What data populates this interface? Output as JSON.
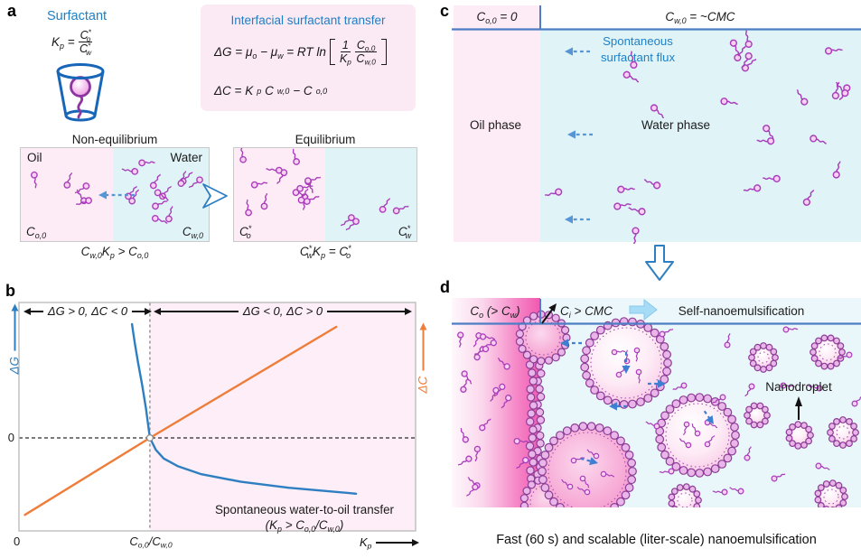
{
  "panels": {
    "a": {
      "label": "a",
      "surfactant_label": "Surfactant",
      "kp_eq": {
        "lhs": "K_{p} =",
        "num": "C^{*}_{o}",
        "den": "C^{*}_{w}"
      },
      "transfer_box": {
        "title": "Interfacial surfactant transfer",
        "eq1_lhs": "ΔG = μ_{o} − μ_{w} = RT ln",
        "f1": {
          "num": "1",
          "den": "K_{p}"
        },
        "f2": {
          "num": "C_{o,0}",
          "den": "C_{w,0}"
        },
        "eq2": "ΔC = K_{p}C_{w,0} − C_{o,0}"
      },
      "non_equilibrium": {
        "title": "Non-equilibrium",
        "oil_label": "Oil",
        "water_label": "Water",
        "oil_conc": "C_{o,0}",
        "water_conc": "C_{w,0}",
        "condition": "C_{w,0}K_{p} > C_{o,0}"
      },
      "equilibrium": {
        "title": "Equilibrium",
        "oil_conc": "C^{*}_{o}",
        "water_conc": "C^{*}_{w}",
        "condition": "C^{*}_{w}K_{p} = C^{*}_{o}"
      }
    },
    "b": {
      "label": "b",
      "region_left": "ΔG > 0, ΔC < 0",
      "region_right": "ΔG < 0, ΔC > 0",
      "y_left_label": "ΔG",
      "y_right_label": "ΔC",
      "zero_y": "0",
      "zero_x": "0",
      "x_tick": "C_{o,0}/C_{w,0}",
      "x_axis_label": "K_{p}",
      "annotation_line1": "Spontaneous water-to-oil transfer",
      "annotation_line2": "(K_{p} > C_{o,0}/C_{w,0})"
    },
    "c": {
      "label": "c",
      "header_left": "C_{o,0} = 0",
      "header_right": "C_{w,0} = ~CMC",
      "flux_label": "Spontaneous surfactant flux",
      "oil_phase": "Oil phase",
      "water_phase": "Water phase"
    },
    "d": {
      "label": "d",
      "oil_conc": "C_{o} (> C_{w})",
      "interface_conc": "C_{i} > CMC",
      "process": "Self-nanoemulsification",
      "nanodroplet_label": "Nanodroplet",
      "caption": "Fast (60 s) and scalable (liter-scale) nanoemulsification"
    }
  },
  "colors": {
    "blue_text": "#1e80c6",
    "line_blue": "#4d7ec4",
    "curve_blue": "#2e7fc1",
    "orange": "#ee7d3a",
    "molecule": "#a83cba",
    "pink_box": "#fbe9f4",
    "oil_pink": "#fdebf6",
    "water_cyan": "#e0f4f8",
    "panel_b_pink": "#fdeef7",
    "d_water": "#e9f6fa",
    "arrow_blue": "#5795d6",
    "d_arrow_blue": "#3f7fd2"
  },
  "chart_data": {
    "type": "line",
    "title": "",
    "xlabel": "K_p",
    "ylabel_left": "ΔG",
    "ylabel_right": "ΔC",
    "grid": false,
    "x_ticks": [
      {
        "pos": 0,
        "label": "0"
      },
      {
        "pos": 0.33,
        "label": "C_o,0/C_w,0"
      }
    ],
    "regions": [
      {
        "label": "ΔG > 0, ΔC < 0",
        "range": [
          0,
          0.33
        ]
      },
      {
        "label": "ΔG < 0, ΔC > 0",
        "range": [
          0.33,
          1
        ]
      }
    ],
    "zero_line": 0,
    "series": [
      {
        "name": "ΔG",
        "color": "#2e7fc1",
        "points": [
          [
            0.285,
            2.1
          ],
          [
            0.292,
            1.75
          ],
          [
            0.3,
            1.4
          ],
          [
            0.31,
            1.0
          ],
          [
            0.32,
            0.55
          ],
          [
            0.33,
            0
          ],
          [
            0.345,
            -0.22
          ],
          [
            0.365,
            -0.38
          ],
          [
            0.4,
            -0.52
          ],
          [
            0.46,
            -0.67
          ],
          [
            0.56,
            -0.81
          ],
          [
            0.68,
            -0.92
          ],
          [
            0.79,
            -0.99
          ],
          [
            0.85,
            -1.03
          ]
        ]
      },
      {
        "name": "ΔC",
        "color": "#ee7d3a",
        "points": [
          [
            0.015,
            -1.42
          ],
          [
            0.33,
            0
          ],
          [
            0.8,
            2.05
          ]
        ]
      }
    ],
    "annotation": "Spontaneous water-to-oil transfer (K_p > C_o,0/C_w,0)"
  }
}
